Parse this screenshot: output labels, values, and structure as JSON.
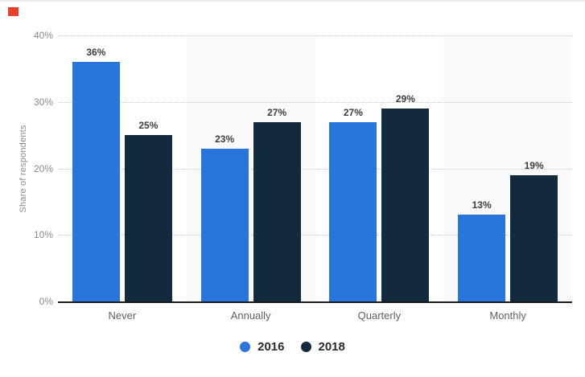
{
  "decorations": {
    "top_left_marker_color": "#e8402d"
  },
  "chart_data": {
    "type": "bar",
    "categories": [
      "Never",
      "Annually",
      "Quarterly",
      "Monthly"
    ],
    "series": [
      {
        "name": "2016",
        "color": "#2875db",
        "values": [
          36,
          23,
          27,
          13
        ]
      },
      {
        "name": "2018",
        "color": "#12293e",
        "values": [
          25,
          27,
          29,
          19
        ]
      }
    ],
    "value_suffix": "%",
    "ylabel": "Share of respondents",
    "xlabel": "",
    "ylim": [
      0,
      40
    ],
    "yticks": [
      0,
      10,
      20,
      30,
      40
    ],
    "ytick_labels": [
      "0%",
      "10%",
      "20%",
      "30%",
      "40%"
    ],
    "grid": "horizontal-dotted",
    "legend": [
      "2016",
      "2018"
    ],
    "legend_position": "bottom-center",
    "plot_band_color": "#fafafa",
    "gridline_color": "#c6c6c6",
    "axis_line_color": "#1b1b1b",
    "tick_label_color": "#8a8a8a",
    "category_label_color": "#606060",
    "value_label_color": "#3c3c3c"
  }
}
